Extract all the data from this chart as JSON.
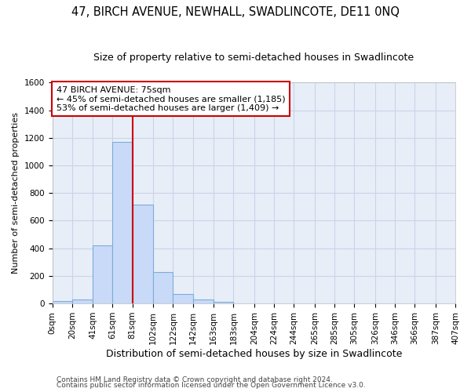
{
  "title": "47, BIRCH AVENUE, NEWHALL, SWADLINCOTE, DE11 0NQ",
  "subtitle": "Size of property relative to semi-detached houses in Swadlincote",
  "xlabel": "Distribution of semi-detached houses by size in Swadlincote",
  "ylabel": "Number of semi-detached properties",
  "footer_line1": "Contains HM Land Registry data © Crown copyright and database right 2024.",
  "footer_line2": "Contains public sector information licensed under the Open Government Licence v3.0.",
  "annotation_title": "47 BIRCH AVENUE: 75sqm",
  "annotation_line1": "← 45% of semi-detached houses are smaller (1,185)",
  "annotation_line2": "53% of semi-detached houses are larger (1,409) →",
  "property_size": 75,
  "bin_edges": [
    0,
    20,
    41,
    61,
    81,
    102,
    122,
    142,
    163,
    183,
    204,
    224,
    244,
    265,
    285,
    305,
    326,
    346,
    366,
    387,
    407
  ],
  "bin_counts": [
    15,
    30,
    420,
    1170,
    715,
    230,
    70,
    30,
    10,
    0,
    0,
    0,
    0,
    0,
    0,
    0,
    0,
    0,
    0,
    0
  ],
  "bar_color": "#c9daf8",
  "bar_edge_color": "#7aaddc",
  "vline_color": "#cc0000",
  "vline_x": 81,
  "annotation_box_color": "#ffffff",
  "annotation_box_edge_color": "#cc0000",
  "grid_color": "#c8d4e8",
  "background_color": "#e8eef8",
  "ylim": [
    0,
    1600
  ],
  "yticks": [
    0,
    200,
    400,
    600,
    800,
    1000,
    1200,
    1400,
    1600
  ],
  "title_fontsize": 10.5,
  "subtitle_fontsize": 9,
  "xlabel_fontsize": 9,
  "ylabel_fontsize": 8,
  "tick_fontsize": 7.5,
  "annotation_fontsize": 8,
  "footer_fontsize": 6.5
}
